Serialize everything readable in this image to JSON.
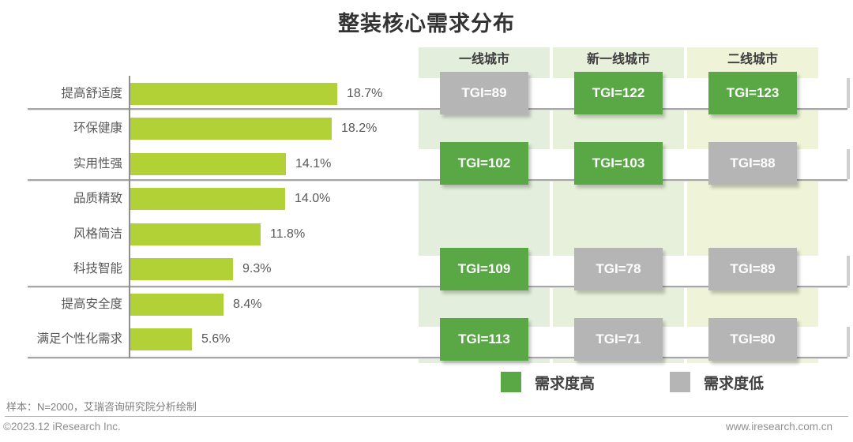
{
  "title": "整装核心需求分布",
  "colors": {
    "bar": "#b1d136",
    "high": "#5aa845",
    "low": "#b5b5b5",
    "panel1": "#e3efdc",
    "panel2": "#e6f0da",
    "panel3": "#eff3d7",
    "separator": "#a6a6a6"
  },
  "chart_data": {
    "type": "bar",
    "orientation": "horizontal",
    "title": "整装核心需求分布",
    "categories": [
      "提高舒适度",
      "环保健康",
      "实用性强",
      "品质精致",
      "风格简洁",
      "科技智能",
      "提高安全度",
      "满足个性化需求"
    ],
    "values": [
      18.7,
      18.2,
      14.1,
      14.0,
      11.8,
      9.3,
      8.4,
      5.6
    ],
    "value_labels": [
      "18.7%",
      "18.2%",
      "14.1%",
      "14.0%",
      "11.8%",
      "9.3%",
      "8.4%",
      "5.6%"
    ],
    "unit": "%",
    "xlim": [
      0,
      20
    ],
    "grid": false,
    "group_separators_after": [
      "提高舒适度",
      "实用性强",
      "科技智能",
      "满足个性化需求"
    ],
    "tgi_table": {
      "columns": [
        "一线城市",
        "新一线城市",
        "二线城市"
      ],
      "rows": [
        {
          "row_anchor_category": "提高舒适度",
          "cells": [
            {
              "text": "TGI=89",
              "level": "low"
            },
            {
              "text": "TGI=122",
              "level": "high"
            },
            {
              "text": "TGI=123",
              "level": "high"
            }
          ]
        },
        {
          "row_anchor_category": "实用性强",
          "cells": [
            {
              "text": "TGI=102",
              "level": "high"
            },
            {
              "text": "TGI=103",
              "level": "high"
            },
            {
              "text": "TGI=88",
              "level": "low"
            }
          ]
        },
        {
          "row_anchor_category": "科技智能",
          "cells": [
            {
              "text": "TGI=109",
              "level": "high"
            },
            {
              "text": "TGI=78",
              "level": "low"
            },
            {
              "text": "TGI=89",
              "level": "low"
            }
          ]
        },
        {
          "row_anchor_category": "满足个性化需求",
          "cells": [
            {
              "text": "TGI=113",
              "level": "high"
            },
            {
              "text": "TGI=71",
              "level": "low"
            },
            {
              "text": "TGI=80",
              "level": "low"
            }
          ]
        }
      ]
    },
    "legend": [
      {
        "label": "需求度高",
        "level": "high",
        "color": "#5aa845"
      },
      {
        "label": "需求度低",
        "level": "low",
        "color": "#b5b5b5"
      }
    ],
    "legend_position": "bottom-right"
  },
  "footer": {
    "note": "样本：N=2000，艾瑞咨询研究院分析绘制",
    "copyright": "©2023.12 iResearch Inc.",
    "website": "www.iresearch.com.cn"
  }
}
